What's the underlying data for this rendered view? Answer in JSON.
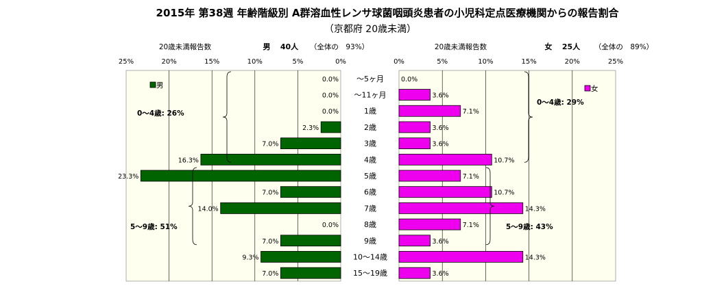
{
  "chart_data": {
    "type": "bar",
    "title": "2015年 第38週 年齢階級別 A群溶血性レンサ球菌咽頭炎患者の小児科定点医療機関からの報告割合",
    "subtitle": "（京都府 20歳未満）",
    "categories": [
      "～5ヶ月",
      "～11ヶ月",
      "1歳",
      "2歳",
      "3歳",
      "4歳",
      "5歳",
      "6歳",
      "7歳",
      "8歳",
      "9歳",
      "10～14歳",
      "15～19歳"
    ],
    "series": [
      {
        "name": "男",
        "color": "#006400",
        "values": [
          0.0,
          0.0,
          0.0,
          2.3,
          7.0,
          16.3,
          23.3,
          7.0,
          14.0,
          0.0,
          7.0,
          9.3,
          7.0
        ],
        "labels": [
          "0.0%",
          "0.0%",
          "0.0%",
          "2.3%",
          "7.0%",
          "16.3%",
          "23.3%",
          "7.0%",
          "14.0%",
          "0.0%",
          "7.0%",
          "9.3%",
          "7.0%"
        ],
        "header_label": "20歳未満報告数",
        "header_sex": "男",
        "header_count": "40人",
        "header_share": "（全体の　93%）",
        "group_labels": [
          "0～4歳: 26%",
          "5～9歳: 51%"
        ]
      },
      {
        "name": "女",
        "color": "#ee00ee",
        "values": [
          0.0,
          3.6,
          7.1,
          3.6,
          3.6,
          10.7,
          7.1,
          10.7,
          14.3,
          7.1,
          3.6,
          14.3,
          3.6
        ],
        "labels": [
          "0.0%",
          "3.6%",
          "7.1%",
          "3.6%",
          "3.6%",
          "10.7%",
          "7.1%",
          "10.7%",
          "14.3%",
          "7.1%",
          "3.6%",
          "14.3%",
          "3.6%"
        ],
        "header_label": "20歳未満報告数",
        "header_sex": "女",
        "header_count": "25人",
        "header_share": "（全体の　89%）",
        "group_labels": [
          "0～4歳: 29%",
          "5～9歳: 43%"
        ]
      }
    ],
    "xlim": [
      0,
      25
    ],
    "x_ticks": [
      "25%",
      "20%",
      "15%",
      "10%",
      "5%",
      "0%"
    ],
    "x_ticks_right": [
      "0%",
      "5%",
      "10%",
      "15%",
      "20%",
      "25%"
    ],
    "grid": true,
    "plot_background": "#fffff0"
  }
}
